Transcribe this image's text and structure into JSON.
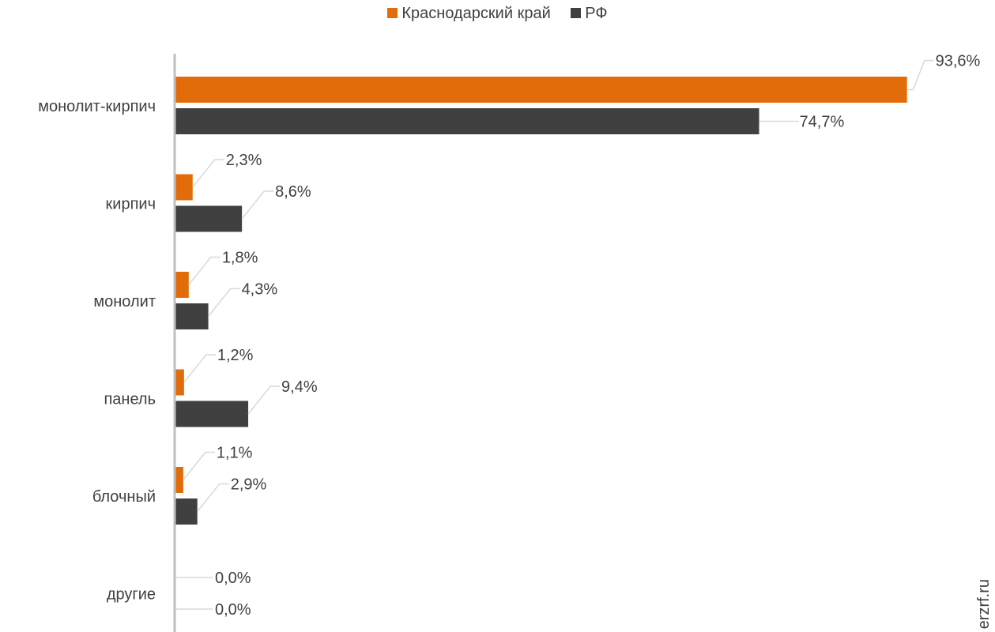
{
  "legend": {
    "series_0": "Краснодарский край",
    "series_1": "РФ"
  },
  "watermark": "erzrf.ru",
  "colors": {
    "series_0": "#E36C0A",
    "series_1": "#404040",
    "axis": "#BFBFBF",
    "leader": "#D9D9D9",
    "text": "#404040"
  },
  "chart_data": {
    "type": "bar",
    "orientation": "horizontal",
    "categories": [
      "монолит-кирпич",
      "кирпич",
      "монолит",
      "панель",
      "блочный",
      "другие"
    ],
    "series": [
      {
        "name": "Краснодарский край",
        "values": [
          93.6,
          2.3,
          1.8,
          1.2,
          1.1,
          0.0
        ],
        "labels": [
          "93,6%",
          "2,3%",
          "1,8%",
          "1,2%",
          "1,1%",
          "0,0%"
        ]
      },
      {
        "name": "РФ",
        "values": [
          74.7,
          8.6,
          4.3,
          9.4,
          2.9,
          0.0
        ],
        "labels": [
          "74,7%",
          "8,6%",
          "4,3%",
          "9,4%",
          "2,9%",
          "0,0%"
        ]
      }
    ],
    "xlim": [
      0,
      100
    ],
    "grid": false,
    "legend_position": "top"
  }
}
